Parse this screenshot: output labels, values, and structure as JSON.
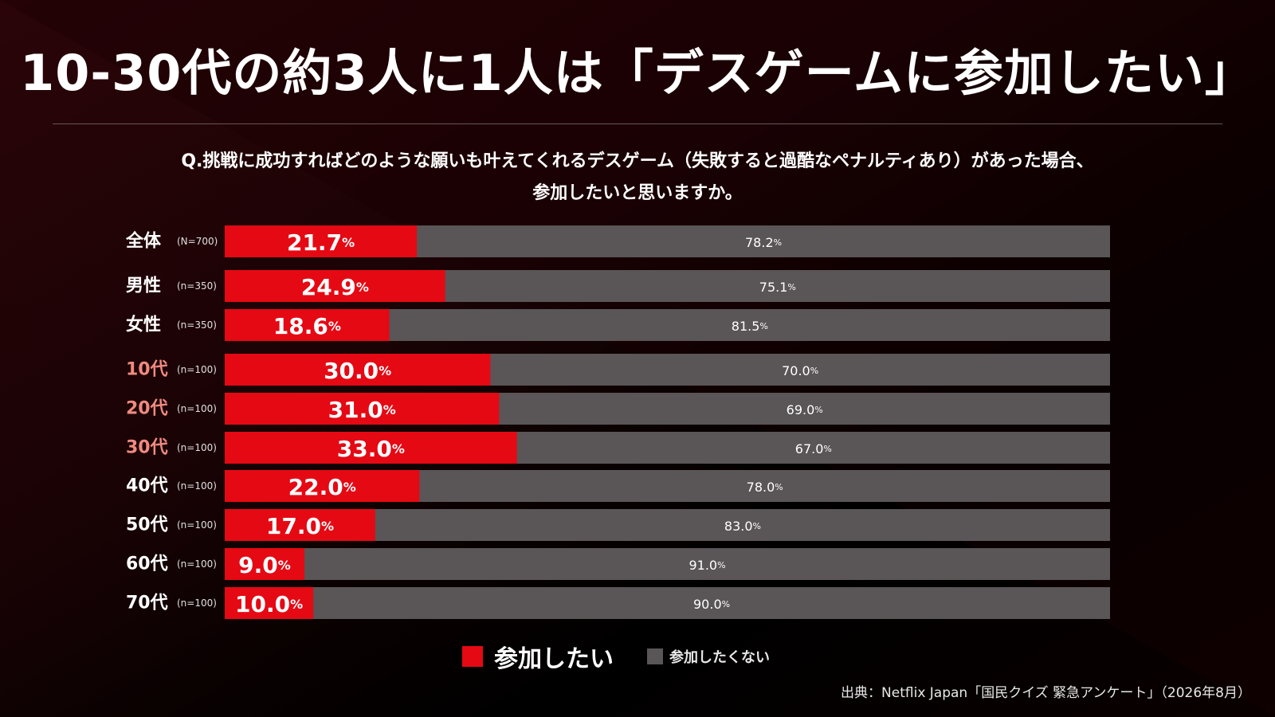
{
  "title": "10-30代の約3人に1人は「デスゲームに参加したい」",
  "question": {
    "line1": "Q.挑戦に成功すればどのような願いも叶えてくれるデスゲーム（失敗すると過酷なペナルティあり）があった場合、",
    "line2": "参加したいと思いますか。"
  },
  "legend": {
    "yes": "参加したい",
    "no": "参加したくない"
  },
  "source": "出典：Netflix Japan「国民クイズ 緊急アンケート」（2026年8月）",
  "colors": {
    "yes": "#e50914",
    "no": "#5a5556",
    "highlight_label": "#f08a80"
  },
  "chart_data": {
    "type": "bar",
    "orientation": "horizontal",
    "stacked": true,
    "unit": "%",
    "categories": [
      "全体",
      "男性",
      "女性",
      "10代",
      "20代",
      "30代",
      "40代",
      "50代",
      "60代",
      "70代"
    ],
    "sample_sizes": [
      "(N=700)",
      "(n=350)",
      "(n=350)",
      "(n=100)",
      "(n=100)",
      "(n=100)",
      "(n=100)",
      "(n=100)",
      "(n=100)",
      "(n=100)"
    ],
    "highlighted": [
      false,
      false,
      false,
      true,
      true,
      true,
      false,
      false,
      false,
      false
    ],
    "series": [
      {
        "name": "参加したい",
        "values": [
          21.7,
          24.9,
          18.6,
          30.0,
          31.0,
          33.0,
          22.0,
          17.0,
          9.0,
          10.0
        ]
      },
      {
        "name": "参加したくない",
        "values": [
          78.2,
          75.1,
          81.5,
          70.0,
          69.0,
          67.0,
          78.0,
          83.0,
          91.0,
          90.0
        ]
      }
    ],
    "xlim": [
      0,
      100
    ]
  }
}
